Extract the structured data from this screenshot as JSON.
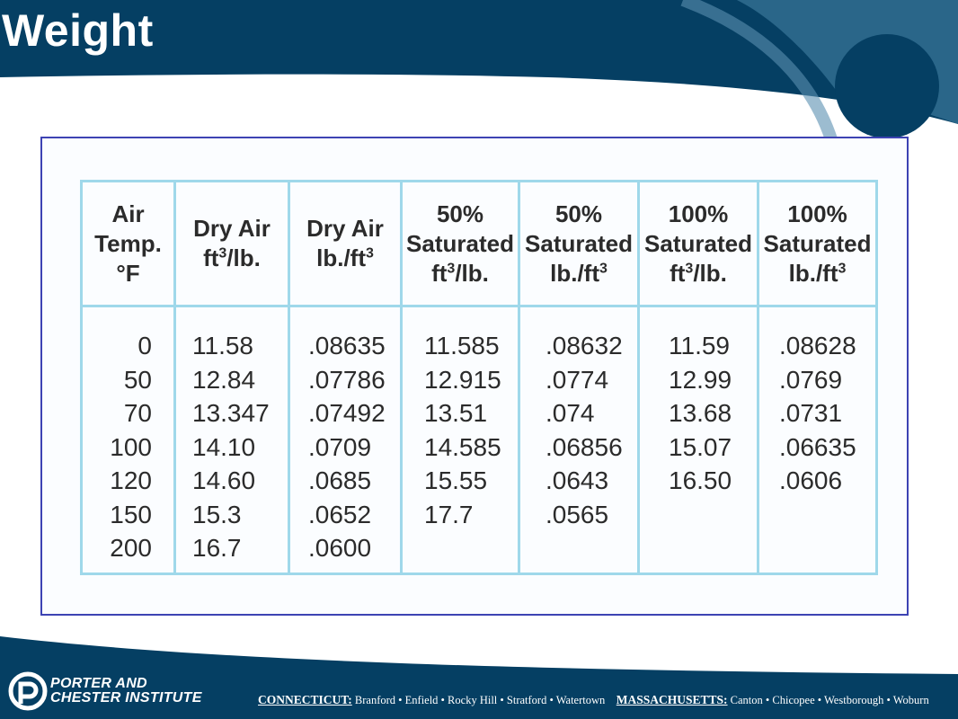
{
  "slide": {
    "title": "Weight"
  },
  "table": {
    "headers": [
      {
        "lines": [
          "Air",
          "Temp.",
          "°F"
        ]
      },
      {
        "lines": [
          "Dry Air",
          "ft|3|/lb."
        ]
      },
      {
        "lines": [
          "Dry Air",
          "lb./ft|3|"
        ]
      },
      {
        "lines": [
          "50%",
          "Saturated",
          "ft|3|/lb."
        ]
      },
      {
        "lines": [
          "50%",
          "Saturated",
          "lb./ft|3|"
        ]
      },
      {
        "lines": [
          "100%",
          "Saturated",
          "ft|3|/lb."
        ]
      },
      {
        "lines": [
          "100%",
          "Saturated",
          "lb./ft|3|"
        ]
      }
    ],
    "columns": [
      [
        "0",
        "50",
        "70",
        "100",
        "120",
        "150",
        "200"
      ],
      [
        "11.58",
        "12.84",
        "13.347",
        "14.10",
        "14.60",
        "15.3",
        "16.7"
      ],
      [
        ".08635",
        ".07786",
        ".07492",
        ".0709",
        ".0685",
        ".0652",
        ".0600"
      ],
      [
        "11.585",
        "12.915",
        "13.51",
        "14.585",
        "15.55",
        "17.7"
      ],
      [
        ".08632",
        ".0774",
        ".074",
        ".06856",
        ".0643",
        ".0565"
      ],
      [
        "11.59",
        "12.99",
        "13.68",
        "15.07",
        "16.50"
      ],
      [
        ".08628",
        ".0769",
        ".0731",
        ".06635",
        ".0606"
      ]
    ]
  },
  "footer": {
    "org_line1": "PORTER AND",
    "org_line2": "CHESTER INSTITUTE",
    "state1": "CONNECTICUT:",
    "towns1": "Branford • Enfield • Rocky Hill • Stratford • Watertown",
    "state2": "MASSACHUSETTS:",
    "towns2": "Canton • Chicopee • Westborough • Woburn"
  },
  "colors": {
    "brand_navy": "#053f63",
    "accent_blue": "#2f6a8e",
    "frame_border": "#3d43b3",
    "table_rule": "#9fd8ea"
  },
  "icons": {
    "logo": "porter-chester-logo-icon"
  }
}
